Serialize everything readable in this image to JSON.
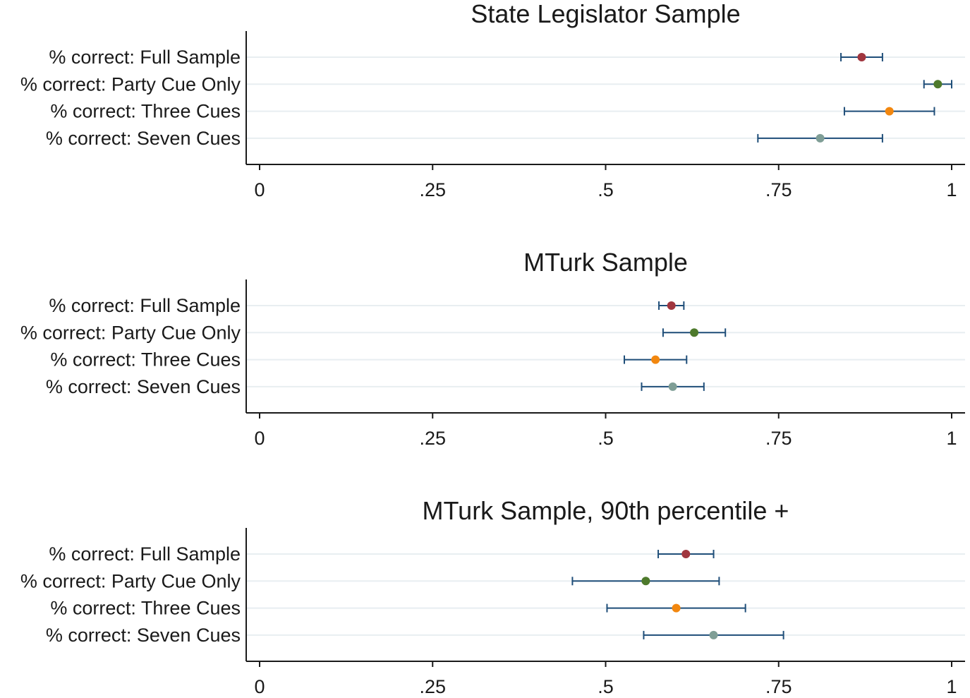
{
  "chart_data": [
    {
      "type": "dot-errorbar",
      "title": "State Legislator Sample",
      "xlim": [
        0,
        1
      ],
      "xticks": [
        0,
        0.25,
        0.5,
        0.75,
        1
      ],
      "xtick_labels": [
        "0",
        ".25",
        ".5",
        ".75",
        "1"
      ],
      "categories": [
        "% correct: Full Sample",
        "% correct: Party Cue Only",
        "% correct: Three Cues",
        "% correct: Seven Cues"
      ],
      "points": [
        {
          "label": "% correct: Full Sample",
          "estimate": 0.87,
          "ci_low": 0.84,
          "ci_high": 0.9,
          "color": "#a0363f"
        },
        {
          "label": "% correct: Party Cue Only",
          "estimate": 0.98,
          "ci_low": 0.96,
          "ci_high": 1.0,
          "color": "#4e7a2c"
        },
        {
          "label": "% correct: Three Cues",
          "estimate": 0.91,
          "ci_low": 0.845,
          "ci_high": 0.975,
          "color": "#f2870f"
        },
        {
          "label": "% correct: Seven Cues",
          "estimate": 0.81,
          "ci_low": 0.72,
          "ci_high": 0.9,
          "color": "#7f9e96"
        }
      ]
    },
    {
      "type": "dot-errorbar",
      "title": "MTurk Sample",
      "xlim": [
        0,
        1
      ],
      "xticks": [
        0,
        0.25,
        0.5,
        0.75,
        1
      ],
      "xtick_labels": [
        "0",
        ".25",
        ".5",
        ".75",
        "1"
      ],
      "categories": [
        "% correct: Full Sample",
        "% correct: Party Cue Only",
        "% correct: Three Cues",
        "% correct: Seven Cues"
      ],
      "points": [
        {
          "label": "% correct: Full Sample",
          "estimate": 0.595,
          "ci_low": 0.577,
          "ci_high": 0.613,
          "color": "#a0363f"
        },
        {
          "label": "% correct: Party Cue Only",
          "estimate": 0.628,
          "ci_low": 0.583,
          "ci_high": 0.673,
          "color": "#4e7a2c"
        },
        {
          "label": "% correct: Three Cues",
          "estimate": 0.572,
          "ci_low": 0.527,
          "ci_high": 0.617,
          "color": "#f2870f"
        },
        {
          "label": "% correct: Seven Cues",
          "estimate": 0.597,
          "ci_low": 0.552,
          "ci_high": 0.642,
          "color": "#7f9e96"
        }
      ]
    },
    {
      "type": "dot-errorbar",
      "title": "MTurk Sample, 90th percentile +",
      "xlim": [
        0,
        1
      ],
      "xticks": [
        0,
        0.25,
        0.5,
        0.75,
        1
      ],
      "xtick_labels": [
        "0",
        ".25",
        ".5",
        ".75",
        "1"
      ],
      "categories": [
        "% correct: Full Sample",
        "% correct: Party Cue Only",
        "% correct: Three Cues",
        "% correct: Seven Cues"
      ],
      "points": [
        {
          "label": "% correct: Full Sample",
          "estimate": 0.616,
          "ci_low": 0.576,
          "ci_high": 0.656,
          "color": "#a0363f"
        },
        {
          "label": "% correct: Party Cue Only",
          "estimate": 0.558,
          "ci_low": 0.452,
          "ci_high": 0.664,
          "color": "#4e7a2c"
        },
        {
          "label": "% correct: Three Cues",
          "estimate": 0.602,
          "ci_low": 0.502,
          "ci_high": 0.702,
          "color": "#f2870f"
        },
        {
          "label": "% correct: Seven Cues",
          "estimate": 0.656,
          "ci_low": 0.555,
          "ci_high": 0.757,
          "color": "#7f9e96"
        }
      ]
    }
  ],
  "colors": {
    "axis": "#1a1a1a",
    "gridline": "#e8eef1",
    "errorbar": "#1f4e79"
  }
}
